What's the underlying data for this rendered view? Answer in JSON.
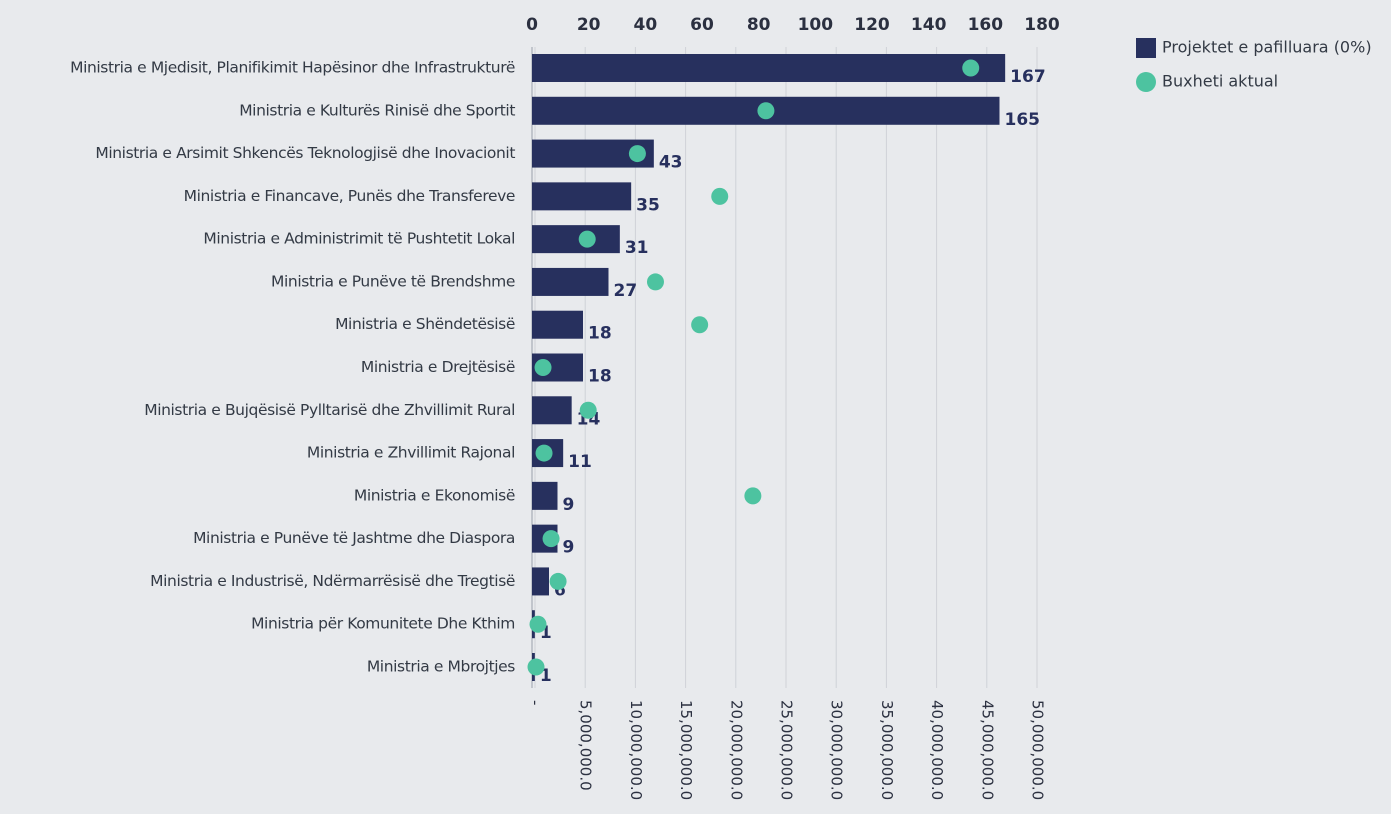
{
  "chart_data": {
    "type": "bar-dot",
    "categories": [
      "Ministria e Mjedisit, Planifikimit Hapësinor dhe Infrastrukturë",
      "Ministria e Kulturës Rinisë dhe Sportit",
      "Ministria e Arsimit Shkencës Teknologjisë dhe Inovacionit",
      "Ministria e Financave, Punës dhe Transfereve",
      "Ministria e Administrimit të Pushtetit Lokal",
      "Ministria e Punëve të Brendshme",
      "Ministria e Shëndetësisë",
      "Ministria e Drejtësisë",
      "Ministria e Bujqësisë Pylltarisë dhe Zhvillimit Rural",
      "Ministria e Zhvillimit Rajonal",
      "Ministria e Ekonomisë",
      "Ministria e Punëve të Jashtme dhe Diaspora",
      "Ministria e Industrisë, Ndërmarrësisë dhe Tregtisë",
      "Ministria për Komunitete Dhe Kthim",
      "Ministria e Mbrojtjes"
    ],
    "series": [
      {
        "name": "Projektet e pafilluara (0%)",
        "color": "#27305e",
        "values": [
          167,
          165,
          43,
          35,
          31,
          27,
          18,
          18,
          14,
          11,
          9,
          9,
          6,
          1,
          1
        ]
      },
      {
        "name": "Buxheti aktual",
        "color": "#4dc3a0",
        "axis": "x2",
        "values": [
          43400000,
          23000000,
          10200000,
          18400000,
          5200000,
          12000000,
          16400000,
          800000,
          5300000,
          900000,
          21700000,
          1600000,
          2300000,
          300000,
          100000
        ]
      }
    ],
    "xlim": [
      0,
      180
    ],
    "xticks": [
      0,
      20,
      40,
      60,
      80,
      100,
      120,
      140,
      160,
      180
    ],
    "x2lim": [
      0,
      50000000
    ],
    "x2ticks": [
      {
        "value": 0,
        "label": "-"
      },
      {
        "value": 5000000,
        "label": "5,000,000.0"
      },
      {
        "value": 10000000,
        "label": "10,000,000.0"
      },
      {
        "value": 15000000,
        "label": "15,000,000.0"
      },
      {
        "value": 20000000,
        "label": "20,000,000.0"
      },
      {
        "value": 25000000,
        "label": "25,000,000.0"
      },
      {
        "value": 30000000,
        "label": "30,000,000.0"
      },
      {
        "value": 35000000,
        "label": "35,000,000.0"
      },
      {
        "value": 40000000,
        "label": "40,000,000.0"
      },
      {
        "value": 45000000,
        "label": "45,000,000.0"
      },
      {
        "value": 50000000,
        "label": "50,000,000.0"
      }
    ],
    "grid": true,
    "legend": "top-right"
  }
}
